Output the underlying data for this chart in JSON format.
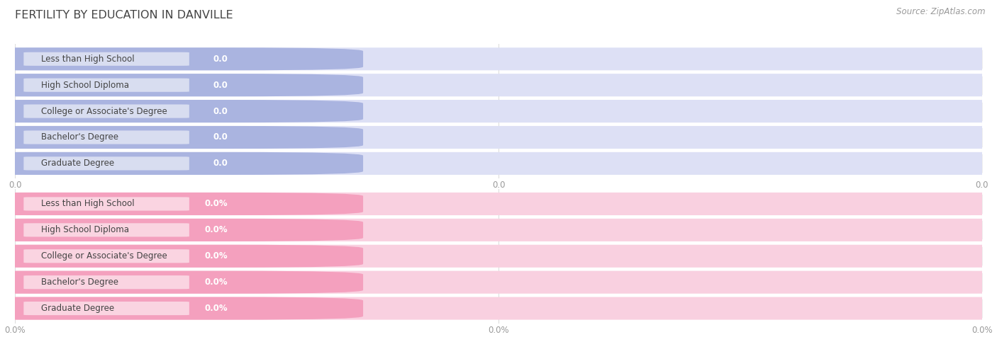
{
  "title": "FERTILITY BY EDUCATION IN DANVILLE",
  "source_text": "Source: ZipAtlas.com",
  "categories": [
    "Less than High School",
    "High School Diploma",
    "College or Associate's Degree",
    "Bachelor's Degree",
    "Graduate Degree"
  ],
  "top_values": [
    0.0,
    0.0,
    0.0,
    0.0,
    0.0
  ],
  "bottom_values": [
    0.0,
    0.0,
    0.0,
    0.0,
    0.0
  ],
  "top_bar_fill": "#aab4e0",
  "top_bar_bg": "#dde0f5",
  "top_text_color": "#555555",
  "top_value_color": "#ffffff",
  "bottom_bar_fill": "#f4a0be",
  "bottom_bar_bg": "#f9d0e0",
  "bottom_text_color": "#555555",
  "bottom_value_color": "#ffffff",
  "bg_color": "#ffffff",
  "row_sep_color": "#ffffff",
  "grid_color": "#dddddd",
  "tick_color": "#999999",
  "title_color": "#444444",
  "source_color": "#999999",
  "top_tick_labels": [
    "0.0",
    "0.0",
    "0.0"
  ],
  "bottom_tick_labels": [
    "0.0%",
    "0.0%",
    "0.0%"
  ],
  "figwidth": 14.06,
  "figheight": 4.76,
  "dpi": 100
}
